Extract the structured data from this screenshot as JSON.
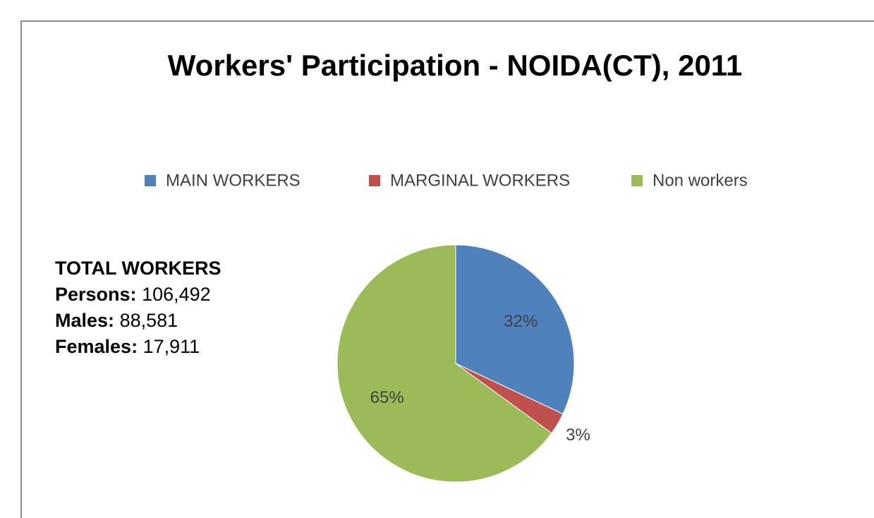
{
  "chart_data": {
    "type": "pie",
    "title": "Workers' Participation - NOIDA(CT), 2011",
    "categories": [
      "MAIN WORKERS",
      "MARGINAL WORKERS",
      "Non workers"
    ],
    "values": [
      32,
      3,
      65
    ],
    "value_labels": [
      "32%",
      "3%",
      "65%"
    ],
    "colors": [
      "#4f81bd",
      "#c0504d",
      "#9bbb59"
    ],
    "legend": "top",
    "annotation": {
      "heading": "TOTAL WORKERS",
      "items": [
        {
          "label": "Persons:",
          "value": "106,492"
        },
        {
          "label": "Males:",
          "value": "88,581"
        },
        {
          "label": "Females:",
          "value": "17,911"
        }
      ]
    }
  }
}
